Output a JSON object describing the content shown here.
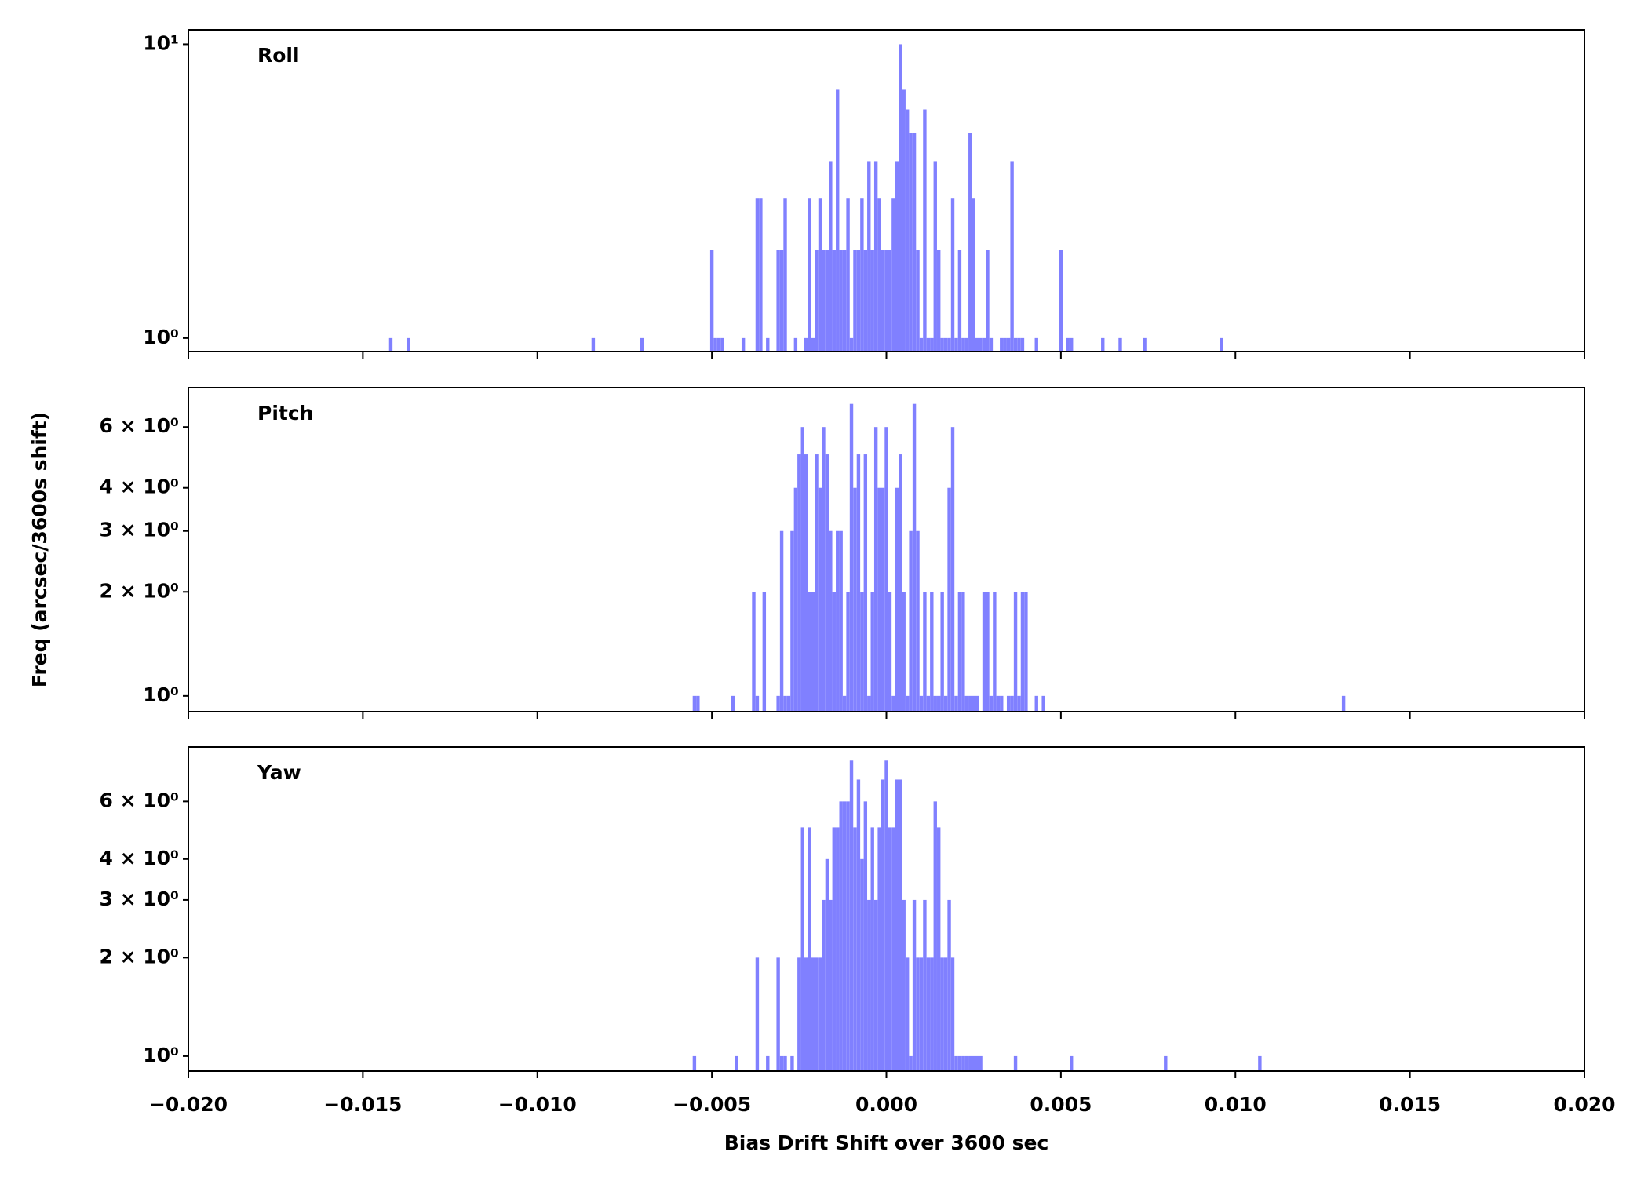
{
  "chart_data": [
    {
      "type": "bar",
      "title": "Roll",
      "color": "#8080ff",
      "log_y": true,
      "x": [
        -0.0142,
        -0.0137,
        -0.0084,
        -0.007,
        -0.005,
        -0.0049,
        -0.0048,
        -0.0047,
        -0.0041,
        -0.0037,
        -0.0036,
        -0.0034,
        -0.0031,
        -0.003,
        -0.0029,
        -0.0026,
        -0.0023,
        -0.0022,
        -0.0021,
        -0.002,
        -0.0019,
        -0.0018,
        -0.0017,
        -0.0016,
        -0.0015,
        -0.0014,
        -0.0013,
        -0.0012,
        -0.0011,
        -0.001,
        -0.0009,
        -0.0008,
        -0.0007,
        -0.0006,
        -0.0005,
        -0.0004,
        -0.0003,
        -0.0002,
        -0.0001,
        0,
        0.0001,
        0.0002,
        0.0003,
        0.0004,
        0.0005,
        0.0006,
        0.0007,
        0.0008,
        0.0009,
        0.001,
        0.0011,
        0.0012,
        0.0013,
        0.0014,
        0.0015,
        0.0016,
        0.0017,
        0.0018,
        0.0019,
        0.002,
        0.0021,
        0.0022,
        0.0023,
        0.0024,
        0.0025,
        0.0026,
        0.0027,
        0.0028,
        0.0029,
        0.003,
        0.0033,
        0.0034,
        0.0035,
        0.0036,
        0.0037,
        0.0038,
        0.0039,
        0.0043,
        0.005,
        0.0052,
        0.0053,
        0.0062,
        0.0067,
        0.0074,
        0.0096
      ],
      "values": [
        1,
        1,
        1,
        1,
        2,
        1,
        1,
        1,
        1,
        3,
        3,
        1,
        2,
        2,
        3,
        1,
        1,
        3,
        1,
        2,
        3,
        2,
        2,
        4,
        2,
        7,
        2,
        2,
        3,
        1,
        2,
        2,
        3,
        2,
        4,
        2,
        4,
        3,
        2,
        2,
        2,
        3,
        4,
        10,
        7,
        6,
        5,
        5,
        2,
        1,
        6,
        1,
        1,
        4,
        2,
        1,
        1,
        1,
        3,
        1,
        2,
        1,
        1,
        5,
        3,
        1,
        1,
        1,
        2,
        1,
        1,
        1,
        1,
        4,
        1,
        1,
        1,
        1,
        2,
        1,
        1,
        1,
        1,
        1,
        1
      ],
      "xlim": [
        -0.02,
        0.02
      ],
      "xticks": [
        -0.02,
        -0.015,
        -0.01,
        -0.005,
        0,
        0.005,
        0.01,
        0.015,
        0.02
      ],
      "ylim": [
        0.9,
        11.2
      ],
      "yticks": [
        {
          "value": 1,
          "label": "10⁰"
        },
        {
          "value": 10,
          "label": "10¹"
        }
      ]
    },
    {
      "type": "bar",
      "title": "Pitch",
      "color": "#8080ff",
      "log_y": true,
      "ylabel": "Freq (arcsec/3600s shift)",
      "x": [
        -0.0055,
        -0.0054,
        -0.0044,
        -0.0038,
        -0.0037,
        -0.0035,
        -0.0031,
        -0.003,
        -0.0029,
        -0.0028,
        -0.0027,
        -0.0026,
        -0.0025,
        -0.0024,
        -0.0023,
        -0.0022,
        -0.0021,
        -0.002,
        -0.0019,
        -0.0018,
        -0.0017,
        -0.0016,
        -0.0015,
        -0.0014,
        -0.0013,
        -0.0012,
        -0.0011,
        -0.001,
        -0.0009,
        -0.0008,
        -0.0007,
        -0.0006,
        -0.0005,
        -0.0004,
        -0.0003,
        -0.0002,
        -0.0001,
        0,
        0.0001,
        0.0002,
        0.0003,
        0.0004,
        0.0005,
        0.0006,
        0.0007,
        0.0008,
        0.0009,
        0.001,
        0.0011,
        0.0012,
        0.0013,
        0.0014,
        0.0015,
        0.0016,
        0.0017,
        0.0018,
        0.0019,
        0.002,
        0.0021,
        0.0022,
        0.0023,
        0.0024,
        0.0025,
        0.0026,
        0.0028,
        0.0029,
        0.003,
        0.0031,
        0.0032,
        0.0033,
        0.0035,
        0.0036,
        0.0037,
        0.0038,
        0.0039,
        0.004,
        0.0043,
        0.0045,
        0.0131
      ],
      "values": [
        1,
        1,
        1,
        2,
        1,
        2,
        1,
        3,
        1,
        1,
        3,
        4,
        5,
        6,
        5,
        2,
        2,
        5,
        4,
        6,
        5,
        3,
        2,
        3,
        3,
        1,
        2,
        7,
        4,
        5,
        2,
        5,
        1,
        2,
        6,
        4,
        4,
        6,
        2,
        1,
        4,
        5,
        2,
        1,
        3,
        7,
        3,
        1,
        2,
        1,
        2,
        1,
        1,
        2,
        1,
        4,
        6,
        1,
        2,
        2,
        1,
        1,
        1,
        1,
        2,
        2,
        1,
        2,
        1,
        1,
        1,
        1,
        2,
        1,
        2,
        2,
        1,
        1,
        1
      ],
      "xlim": [
        -0.02,
        0.02
      ],
      "xticks": [
        -0.02,
        -0.015,
        -0.01,
        -0.005,
        0,
        0.005,
        0.01,
        0.015,
        0.02
      ],
      "ylim": [
        0.9,
        7.8
      ],
      "yticks": [
        {
          "value": 1,
          "label": "10⁰"
        },
        {
          "value": 2,
          "label": "2 × 10⁰"
        },
        {
          "value": 3,
          "label": "3 × 10⁰"
        },
        {
          "value": 4,
          "label": "4 × 10⁰"
        },
        {
          "value": 6,
          "label": "6 × 10⁰"
        }
      ]
    },
    {
      "type": "bar",
      "title": "Yaw",
      "color": "#8080ff",
      "log_y": true,
      "xlabel": "Bias Drift Shift over 3600 sec",
      "x": [
        -0.0055,
        -0.0043,
        -0.0037,
        -0.0034,
        -0.0031,
        -0.003,
        -0.0029,
        -0.0027,
        -0.0025,
        -0.0024,
        -0.0023,
        -0.0022,
        -0.0021,
        -0.002,
        -0.0019,
        -0.0018,
        -0.0017,
        -0.0016,
        -0.0015,
        -0.0014,
        -0.0013,
        -0.0012,
        -0.0011,
        -0.001,
        -0.0009,
        -0.0008,
        -0.0007,
        -0.0006,
        -0.0005,
        -0.0004,
        -0.0003,
        -0.0002,
        -0.0001,
        0,
        0.0001,
        0.0002,
        0.0003,
        0.0004,
        0.0005,
        0.0006,
        0.0007,
        0.0008,
        0.0009,
        0.001,
        0.0011,
        0.0012,
        0.0013,
        0.0014,
        0.0015,
        0.0016,
        0.0017,
        0.0018,
        0.0019,
        0.002,
        0.0021,
        0.0022,
        0.0023,
        0.0024,
        0.0025,
        0.0026,
        0.0027,
        0.0037,
        0.0053,
        0.008,
        0.0107
      ],
      "values": [
        1,
        1,
        2,
        1,
        2,
        1,
        1,
        1,
        2,
        5,
        2,
        5,
        2,
        2,
        2,
        3,
        4,
        3,
        5,
        5,
        6,
        6,
        6,
        8,
        5,
        7,
        4,
        6,
        3,
        5,
        3,
        5,
        7,
        8,
        5,
        5,
        7,
        7,
        3,
        2,
        1,
        3,
        2,
        2,
        3,
        2,
        2,
        6,
        5,
        2,
        2,
        3,
        2,
        1,
        1,
        1,
        1,
        1,
        1,
        1,
        1,
        1,
        1,
        1,
        1
      ],
      "xlim": [
        -0.02,
        0.02
      ],
      "xticks": [
        {
          "value": -0.02,
          "label": "−0.020"
        },
        {
          "value": -0.015,
          "label": "−0.015"
        },
        {
          "value": -0.01,
          "label": "−0.010"
        },
        {
          "value": -0.005,
          "label": "−0.005"
        },
        {
          "value": 0,
          "label": "0.000"
        },
        {
          "value": 0.005,
          "label": "0.005"
        },
        {
          "value": 0.01,
          "label": "0.010"
        },
        {
          "value": 0.015,
          "label": "0.015"
        },
        {
          "value": 0.02,
          "label": "0.020"
        }
      ],
      "ylim": [
        0.9,
        8.8
      ],
      "yticks": [
        {
          "value": 1,
          "label": "10⁰"
        },
        {
          "value": 2,
          "label": "2 × 10⁰"
        },
        {
          "value": 3,
          "label": "3 × 10⁰"
        },
        {
          "value": 4,
          "label": "4 × 10⁰"
        },
        {
          "value": 6,
          "label": "6 × 10⁰"
        }
      ]
    }
  ]
}
